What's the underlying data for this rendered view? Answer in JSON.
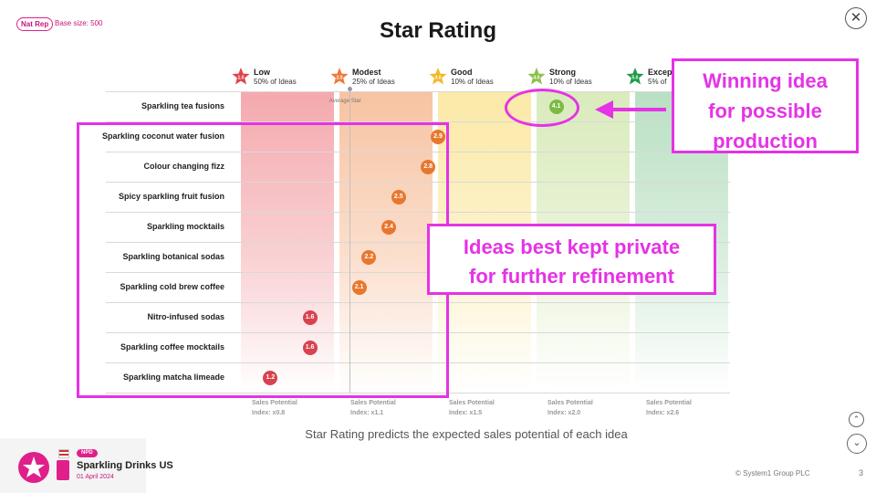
{
  "header": {
    "badge": "Nat Rep",
    "base_size": "Base size: 500",
    "title": "Star Rating",
    "close_icon": "close-icon"
  },
  "chart_data": {
    "type": "scatter",
    "title": "Star Rating",
    "categories": [
      "Sparkling tea fusions",
      "Sparkling coconut water fusion",
      "Colour changing fizz",
      "Spicy sparkling fruit fusion",
      "Sparkling mocktails",
      "Sparkling botanical sodas",
      "Sparkling cold brew coffee",
      "Nitro-infused sodas",
      "Sparkling coffee mocktails",
      "Sparkling matcha limeade"
    ],
    "values": [
      4.1,
      2.9,
      2.8,
      2.5,
      2.4,
      2.2,
      2.1,
      1.6,
      1.6,
      1.2
    ],
    "value_labels": [
      "4.1",
      "2.9",
      "2.8",
      "2.5",
      "2.4",
      "2.2",
      "2.1",
      "1.6",
      "1.6",
      "1.2"
    ],
    "xlim": [
      0.9,
      5.9
    ],
    "average_star": {
      "label": "Average Star",
      "value": 2.0
    },
    "bands": [
      {
        "star": "1.0",
        "name": "Low",
        "share": "50% of Ideas",
        "sales_label": "Sales Potential",
        "index": "Index: x0.8",
        "color": "#f4a9ad",
        "star_color": "#e0424b"
      },
      {
        "star": "2.0",
        "name": "Modest",
        "share": "25% of Ideas",
        "sales_label": "Sales Potential",
        "index": "Index: x1.1",
        "color": "#f7c3a2",
        "star_color": "#ed7a3a"
      },
      {
        "star": "3.0",
        "name": "Good",
        "share": "10% of Ideas",
        "sales_label": "Sales Potential",
        "index": "Index: x1.5",
        "color": "#fbe9a6",
        "star_color": "#f2b824"
      },
      {
        "star": "4.0",
        "name": "Strong",
        "share": "10% of Ideas",
        "sales_label": "Sales Potential",
        "index": "Index: x2.0",
        "color": "#d9ebbb",
        "star_color": "#8dc04a"
      },
      {
        "star": "5.0",
        "name": "Excep",
        "share": "5% of",
        "sales_label": "Sales Potential",
        "index": "Index: x2.6",
        "color": "#b9e0c3",
        "star_color": "#1f9a4a"
      }
    ],
    "dot_colors": {
      "low": "#d9424f",
      "modest": "#e8772e",
      "strong": "#7dba44"
    },
    "caption": "Star Rating predicts the expected sales potential of each idea"
  },
  "annotations": {
    "winning": "Winning idea\nfor possible\nproduction",
    "private": "Ideas best kept private\nfor further refinement",
    "color": "#e533e5"
  },
  "footer": {
    "flag": "US",
    "tag": "NPD",
    "project": "Sparkling Drinks US",
    "date": "01 April 2024",
    "copyright": "© System1 Group PLC",
    "page": "3",
    "up_icon": "chevron-up-icon",
    "down_icon": "chevron-down-icon"
  }
}
